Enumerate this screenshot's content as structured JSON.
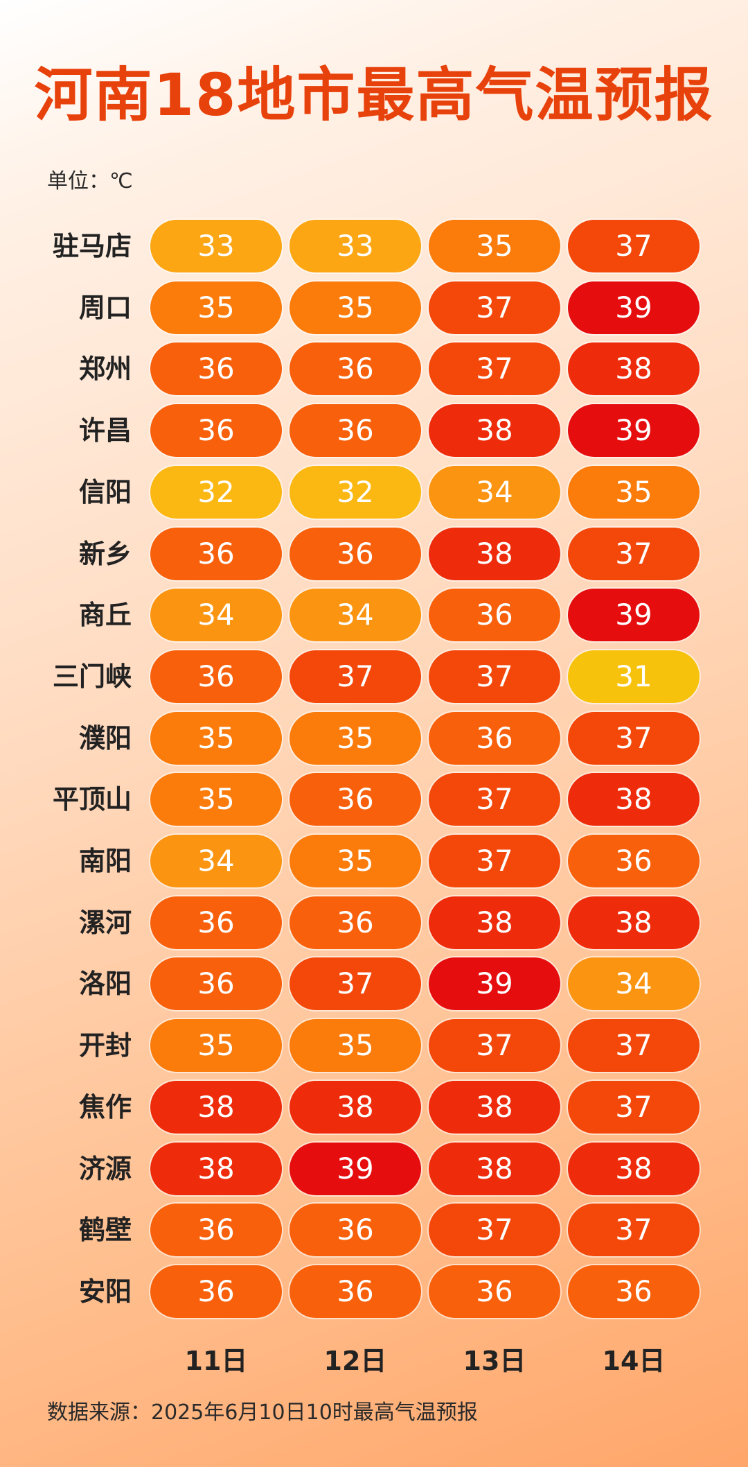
{
  "title": "河南18地市最高气温预报",
  "unit_label": "单位：℃",
  "source": "数据来源：2025年6月10日10时最高气温预报",
  "colors": {
    "31": "#f7c20c",
    "32": "#fbb712",
    "33": "#fca613",
    "34": "#fb9410",
    "35": "#fb7b0b",
    "36": "#f8600b",
    "37": "#f4470a",
    "38": "#ee2b0b",
    "39": "#e60d0f"
  },
  "chart_data": {
    "type": "table",
    "title": "河南18地市最高气温预报",
    "unit": "℃",
    "days": [
      "11日",
      "12日",
      "13日",
      "14日"
    ],
    "rows": [
      {
        "city": "驻马店",
        "values": [
          33,
          33,
          35,
          37
        ]
      },
      {
        "city": "周口",
        "values": [
          35,
          35,
          37,
          39
        ]
      },
      {
        "city": "郑州",
        "values": [
          36,
          36,
          37,
          38
        ]
      },
      {
        "city": "许昌",
        "values": [
          36,
          36,
          38,
          39
        ]
      },
      {
        "city": "信阳",
        "values": [
          32,
          32,
          34,
          35
        ]
      },
      {
        "city": "新乡",
        "values": [
          36,
          36,
          38,
          37
        ]
      },
      {
        "city": "商丘",
        "values": [
          34,
          34,
          36,
          39
        ]
      },
      {
        "city": "三门峡",
        "values": [
          36,
          37,
          37,
          31
        ]
      },
      {
        "city": "濮阳",
        "values": [
          35,
          35,
          36,
          37
        ]
      },
      {
        "city": "平顶山",
        "values": [
          35,
          36,
          37,
          38
        ]
      },
      {
        "city": "南阳",
        "values": [
          34,
          35,
          37,
          36
        ]
      },
      {
        "city": "漯河",
        "values": [
          36,
          36,
          38,
          38
        ]
      },
      {
        "city": "洛阳",
        "values": [
          36,
          37,
          39,
          34
        ]
      },
      {
        "city": "开封",
        "values": [
          35,
          35,
          37,
          37
        ]
      },
      {
        "city": "焦作",
        "values": [
          38,
          38,
          38,
          37
        ]
      },
      {
        "city": "济源",
        "values": [
          38,
          39,
          38,
          38
        ]
      },
      {
        "city": "鹤壁",
        "values": [
          36,
          36,
          37,
          37
        ]
      },
      {
        "city": "安阳",
        "values": [
          36,
          36,
          36,
          36
        ]
      }
    ]
  }
}
